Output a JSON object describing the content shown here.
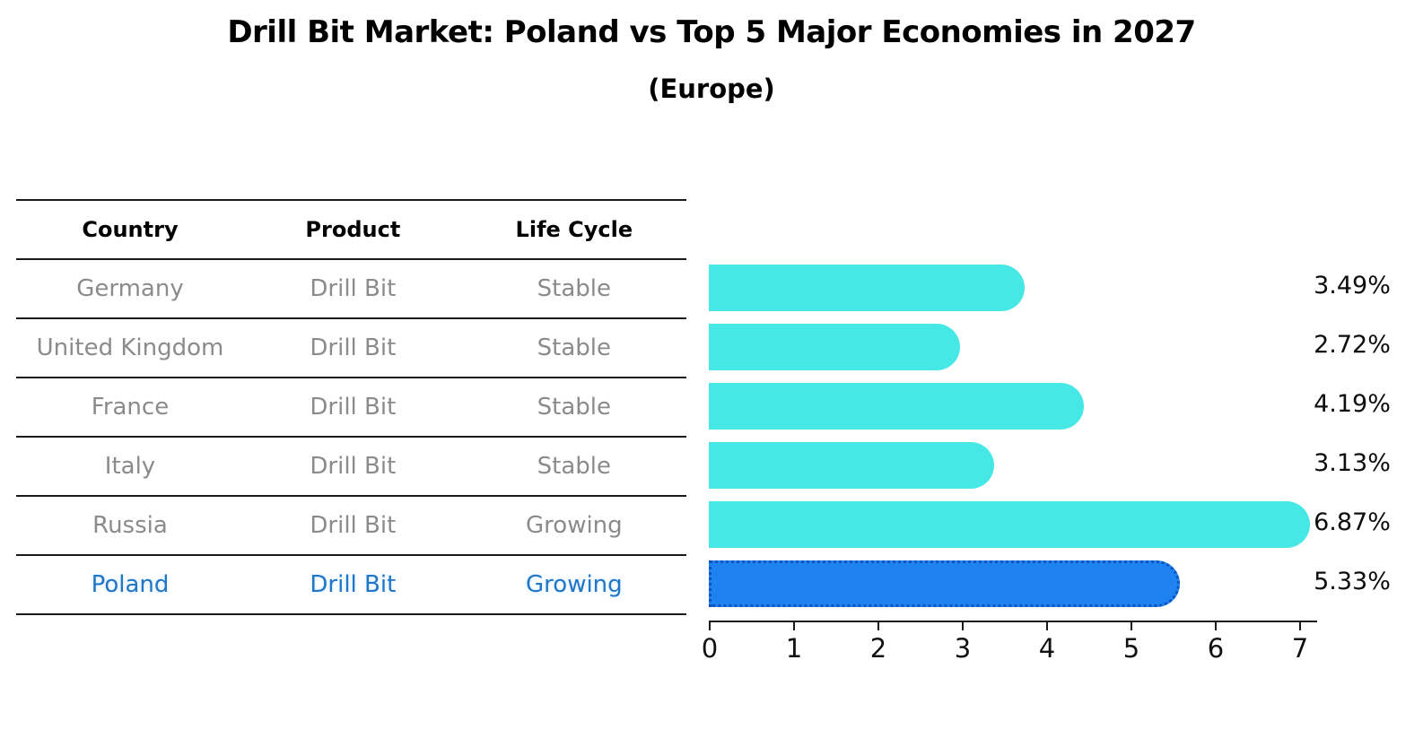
{
  "title": "Drill Bit Market: Poland vs Top 5 Major Economies in 2027",
  "subtitle": "(Europe)",
  "table": {
    "headers": [
      "Country",
      "Product",
      "Life Cycle"
    ],
    "rows": [
      {
        "country": "Germany",
        "product": "Drill Bit",
        "life_cycle": "Stable",
        "highlighted": false
      },
      {
        "country": "United Kingdom",
        "product": "Drill Bit",
        "life_cycle": "Stable",
        "highlighted": false
      },
      {
        "country": "France",
        "product": "Drill Bit",
        "life_cycle": "Stable",
        "highlighted": false
      },
      {
        "country": "Italy",
        "product": "Drill Bit",
        "life_cycle": "Stable",
        "highlighted": false
      },
      {
        "country": "Russia",
        "product": "Drill Bit",
        "life_cycle": "Growing",
        "highlighted": false
      },
      {
        "country": "Poland",
        "product": "Drill Bit",
        "life_cycle": "Growing",
        "highlighted": true
      }
    ]
  },
  "chart_data": {
    "type": "bar",
    "orientation": "horizontal",
    "categories": [
      "Germany",
      "United Kingdom",
      "France",
      "Italy",
      "Russia",
      "Poland"
    ],
    "values": [
      3.49,
      2.72,
      4.19,
      3.13,
      6.87,
      5.33
    ],
    "value_labels": [
      "3.49%",
      "2.72%",
      "4.19%",
      "3.13%",
      "6.87%",
      "5.33%"
    ],
    "x_ticks": [
      0,
      1,
      2,
      3,
      4,
      5,
      6,
      7
    ],
    "xlim": [
      0,
      7.2
    ],
    "grid": false,
    "legend_position": "none",
    "highlight_category": "Poland",
    "bar_color": "#46E8E6",
    "highlight_bar_color": "#1E82F0",
    "highlight_text_color": "#2176c7"
  }
}
